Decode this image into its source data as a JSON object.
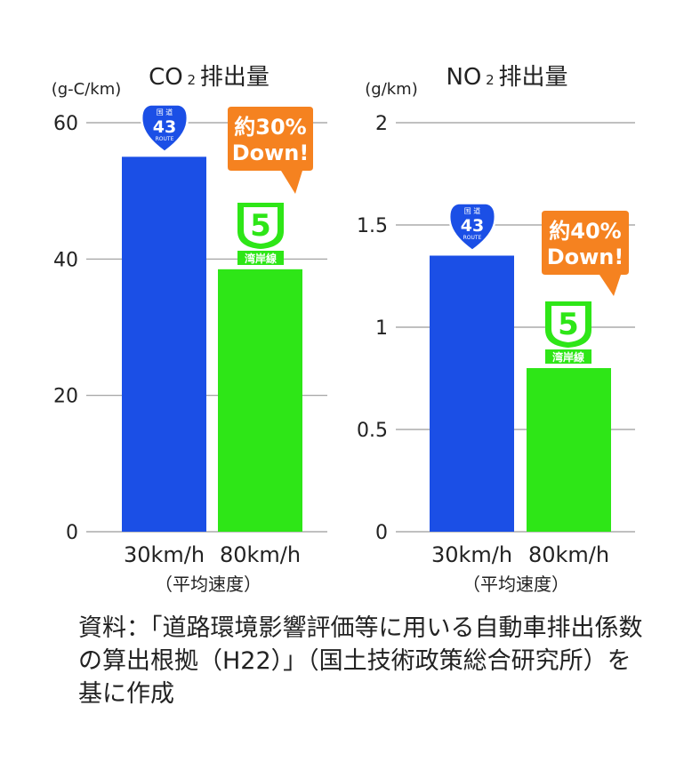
{
  "chart_data": [
    {
      "type": "bar",
      "title_main": "CO",
      "title_sub": "2",
      "title_rest": "排出量",
      "ylabel": "(g-C/km)",
      "xlabel": "（平均速度）",
      "categories": [
        "30km/h",
        "80km/h"
      ],
      "values": [
        55,
        38.5
      ],
      "colors": [
        "#1b4fe6",
        "#2ee617"
      ],
      "ylim": [
        0,
        60
      ],
      "yticks": [
        0,
        20,
        40,
        60
      ],
      "ytick_labels": [
        "0",
        "20",
        "40",
        "60"
      ],
      "grid": true,
      "callout": {
        "line1": "約30%",
        "line2": "Down!"
      },
      "shields": {
        "route": {
          "top": "国 道",
          "number": "43",
          "bottom": "ROUTE"
        },
        "bayshore": {
          "number": "5",
          "label": "湾岸線"
        }
      }
    },
    {
      "type": "bar",
      "title_main": "NO",
      "title_sub": "2",
      "title_rest": "排出量",
      "ylabel": "(g/km)",
      "xlabel": "（平均速度）",
      "categories": [
        "30km/h",
        "80km/h"
      ],
      "values": [
        1.35,
        0.8
      ],
      "colors": [
        "#1b4fe6",
        "#2ee617"
      ],
      "ylim": [
        0,
        2
      ],
      "yticks": [
        0,
        0.5,
        1,
        1.5,
        2
      ],
      "ytick_labels": [
        "0",
        "0.5",
        "1",
        "1.5",
        "2"
      ],
      "grid": true,
      "callout": {
        "line1": "約40%",
        "line2": "Down!"
      },
      "shields": {
        "route": {
          "top": "国 道",
          "number": "43",
          "bottom": "ROUTE"
        },
        "bayshore": {
          "number": "5",
          "label": "湾岸線"
        }
      }
    }
  ],
  "source": {
    "text": "資料：「道路環境影響評価等に用いる自動車排出係数の算出根拠（H22）」（国土技術政策総合研究所）を基に作成"
  }
}
